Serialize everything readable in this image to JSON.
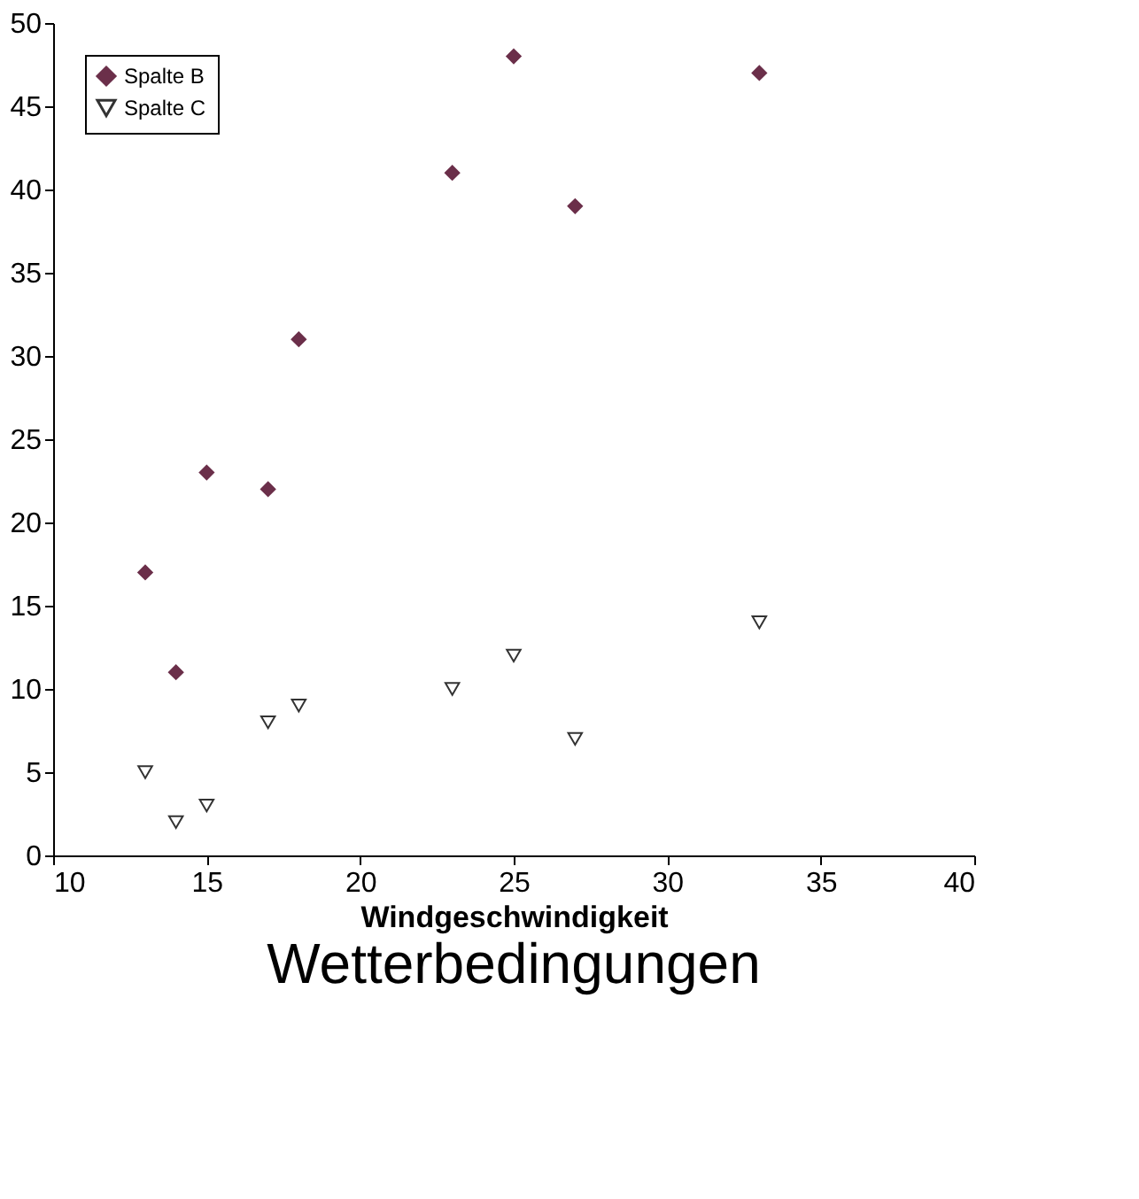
{
  "chart_data": {
    "type": "scatter",
    "title": "Wetterbedingungen",
    "xlabel": "Windgeschwindigkeit",
    "x": [
      13,
      14,
      15,
      17,
      18,
      23,
      25,
      27,
      33
    ],
    "series": [
      {
        "name": "Spalte B",
        "color": "#6b2f4a",
        "marker": "diamond",
        "values": [
          17,
          11,
          23,
          22,
          31,
          41,
          48,
          39,
          47
        ]
      },
      {
        "name": "Spalte C",
        "color": "#333333",
        "marker": "triangle",
        "values": [
          5,
          2,
          3,
          8,
          9,
          10,
          12,
          7,
          14
        ]
      }
    ],
    "xlim": [
      10,
      40
    ],
    "xticks": [
      10,
      15,
      20,
      25,
      30,
      35,
      40
    ],
    "ylim": [
      0,
      50
    ],
    "yticks": [
      0,
      5,
      10,
      15,
      20,
      25,
      30,
      35,
      40,
      45,
      50
    ],
    "grid": false,
    "legend": "top left"
  }
}
